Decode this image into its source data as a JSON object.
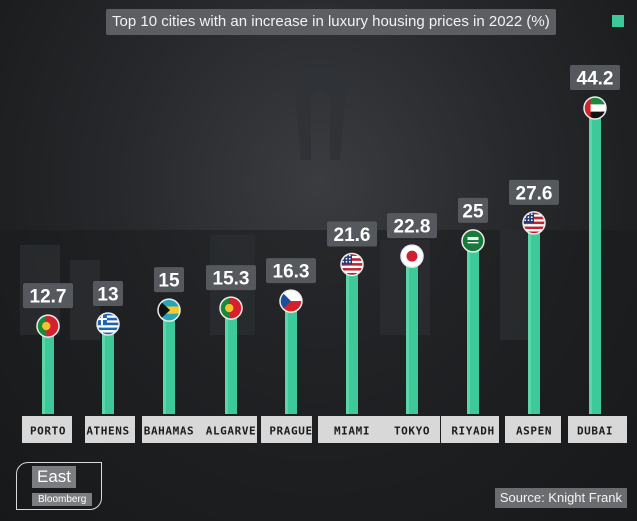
{
  "title": "Top 10 cities with an increase in luxury housing prices in 2022 (%)",
  "source": "Source: Knight Frank",
  "logo": {
    "primary": "East",
    "secondary": "Bloomberg"
  },
  "colors": {
    "bar": "#3ec99a",
    "bar_highlight": "#6fe0b7",
    "value_label_bg": "#55585c",
    "category_label_bg": "#d8d8d8",
    "category_label_text": "#1c1c1c"
  },
  "chart_data": {
    "type": "bar",
    "title": "Top 10 cities with an increase in luxury housing prices in 2022 (%)",
    "categories": [
      "PORTO",
      "ATHENS",
      "BAHAMAS",
      "ALGARVE",
      "PRAGUE",
      "MIAMI",
      "TOKYO",
      "RIYADH",
      "ASPEN",
      "DUBAI"
    ],
    "values": [
      12.7,
      13,
      15,
      15.3,
      16.3,
      21.6,
      22.8,
      25,
      27.6,
      44.2
    ],
    "value_labels": [
      "12.7",
      "13",
      "15",
      "15.3",
      "16.3",
      "21.6",
      "22.8",
      "25",
      "27.6",
      "44.2"
    ],
    "flags": [
      "portugal-flag-icon",
      "greece-flag-icon",
      "bahamas-flag-icon",
      "portugal-flag-icon",
      "czech-flag-icon",
      "usa-flag-icon",
      "japan-flag-icon",
      "saudi-flag-icon",
      "usa-flag-icon",
      "uae-flag-icon"
    ],
    "ylim": [
      0,
      44.2
    ],
    "grid": false,
    "legend": "top-right"
  }
}
